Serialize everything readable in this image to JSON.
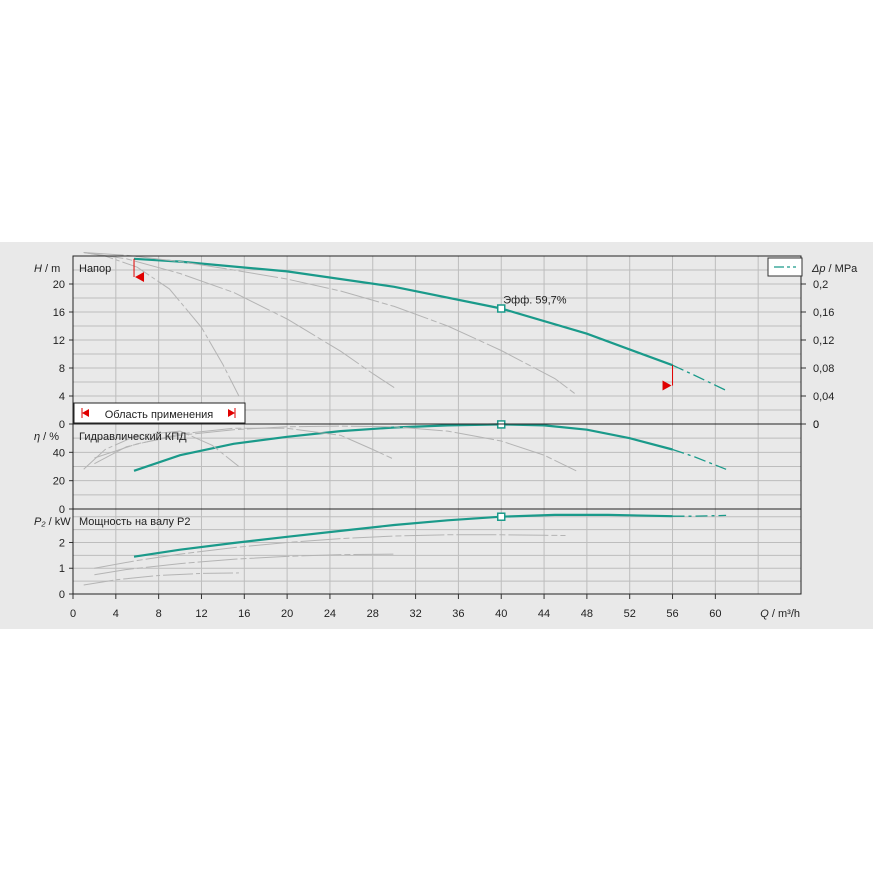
{
  "chart_data": [
    {
      "type": "line",
      "panel": "head",
      "ylabel_sym": "H",
      "ylabel_unit": " / m",
      "title": "Напор",
      "ylabel_right_sym": "Δp",
      "ylabel_right_unit": " / MPa",
      "ylim": [
        0,
        24
      ],
      "yticks": [
        0,
        4,
        8,
        12,
        16,
        20
      ],
      "yticks_right": [
        "0",
        "0,04",
        "0,08",
        "0,12",
        "0,16",
        "0,2"
      ],
      "range_label": "Область применения",
      "duty_point_label": "Эфф.  59,7%",
      "duty_point": {
        "x": 40,
        "y": 16.5
      },
      "range_limits": [
        5.7,
        56
      ],
      "series": [
        {
          "role": "main",
          "x": [
            5.7,
            10,
            20,
            30,
            40,
            48,
            56
          ],
          "y": [
            23.6,
            23.2,
            21.8,
            19.6,
            16.5,
            12.9,
            8.4
          ]
        },
        {
          "role": "extension",
          "x": [
            56,
            58,
            61
          ],
          "y": [
            8.4,
            7.0,
            4.8
          ]
        },
        {
          "role": "reference",
          "x": [
            1,
            5,
            10,
            15,
            20,
            25,
            30,
            35,
            40,
            45,
            47
          ],
          "y": [
            24.5,
            24.1,
            23.2,
            22.0,
            20.7,
            19.0,
            16.8,
            14.0,
            10.5,
            6.5,
            4.2
          ]
        },
        {
          "role": "reference",
          "x": [
            1,
            5,
            10,
            15,
            20,
            25,
            28,
            30
          ],
          "y": [
            24.5,
            23.6,
            21.5,
            18.8,
            15.0,
            10.4,
            7.2,
            5.2
          ]
        },
        {
          "role": "reference",
          "x": [
            1,
            3,
            6,
            9,
            12,
            14,
            15.5
          ],
          "y": [
            24.5,
            24.0,
            22.4,
            19.3,
            13.8,
            8.5,
            4.0
          ]
        }
      ]
    },
    {
      "type": "line",
      "panel": "efficiency",
      "ylabel_sym": "η",
      "ylabel_unit": " / %",
      "title": "Гидравлический КПД",
      "ylim": [
        0,
        60
      ],
      "yticks": [
        0,
        20,
        40
      ],
      "duty_point": {
        "x": 40,
        "y": 59.7
      },
      "series": [
        {
          "role": "main",
          "x": [
            5.7,
            10,
            15,
            20,
            25,
            30,
            35,
            40,
            44,
            48,
            52,
            56
          ],
          "y": [
            27,
            38,
            46,
            51,
            55,
            57.5,
            59,
            59.7,
            59,
            56,
            50,
            42
          ]
        },
        {
          "role": "extension",
          "x": [
            56,
            58,
            61
          ],
          "y": [
            42,
            37,
            28
          ]
        },
        {
          "role": "reference",
          "x": [
            2,
            6,
            10,
            15,
            20,
            25,
            30,
            35,
            40,
            44,
            47
          ],
          "y": [
            36,
            46,
            52,
            56,
            58,
            58.5,
            58,
            55,
            48,
            38,
            27
          ]
        },
        {
          "role": "reference",
          "x": [
            2,
            5,
            10,
            15,
            20,
            25,
            28,
            30
          ],
          "y": [
            32,
            44,
            53,
            57,
            57,
            52,
            42,
            35
          ]
        },
        {
          "role": "reference",
          "x": [
            1,
            3,
            6,
            10,
            13,
            15.5
          ],
          "y": [
            28,
            42,
            52,
            55,
            45,
            30
          ]
        }
      ]
    },
    {
      "type": "line",
      "panel": "power",
      "ylabel_sym": "P₂",
      "ylabel_unit": " / kW",
      "title": "Мощность на валу P2",
      "ylim": [
        0,
        3.3
      ],
      "yticks": [
        0,
        1,
        2
      ],
      "duty_point": {
        "x": 40,
        "y": 3.0
      },
      "series": [
        {
          "role": "main",
          "x": [
            5.7,
            10,
            15,
            20,
            25,
            30,
            35,
            40,
            45,
            50,
            56
          ],
          "y": [
            1.45,
            1.72,
            1.98,
            2.22,
            2.45,
            2.68,
            2.86,
            3.0,
            3.07,
            3.07,
            3.02
          ]
        },
        {
          "role": "extension",
          "x": [
            56,
            58,
            61
          ],
          "y": [
            3.02,
            3.02,
            3.05
          ]
        },
        {
          "role": "reference",
          "x": [
            2,
            6,
            10,
            15,
            20,
            25,
            30,
            35,
            40,
            44,
            46
          ],
          "y": [
            1.0,
            1.3,
            1.55,
            1.8,
            2.0,
            2.15,
            2.25,
            2.3,
            2.3,
            2.28,
            2.27
          ]
        },
        {
          "role": "reference",
          "x": [
            2,
            5,
            10,
            15,
            20,
            25,
            30
          ],
          "y": [
            0.75,
            0.95,
            1.18,
            1.35,
            1.46,
            1.53,
            1.55
          ]
        },
        {
          "role": "reference",
          "x": [
            1,
            4,
            8,
            12,
            15.5
          ],
          "y": [
            0.35,
            0.55,
            0.72,
            0.8,
            0.82
          ]
        }
      ]
    }
  ],
  "x_axis": {
    "label_sym": "Q",
    "label_unit": " / m³/h",
    "ticks": [
      0,
      4,
      8,
      12,
      16,
      20,
      24,
      28,
      32,
      36,
      40,
      44,
      48,
      52,
      56,
      60
    ],
    "xlim": [
      0,
      68
    ]
  },
  "colors": {
    "main": "#1a9a8a",
    "reference": "#b4b4b4",
    "grid": "#bdbdbd",
    "background": "#e9e9e9",
    "range_marker": "#e00000"
  }
}
